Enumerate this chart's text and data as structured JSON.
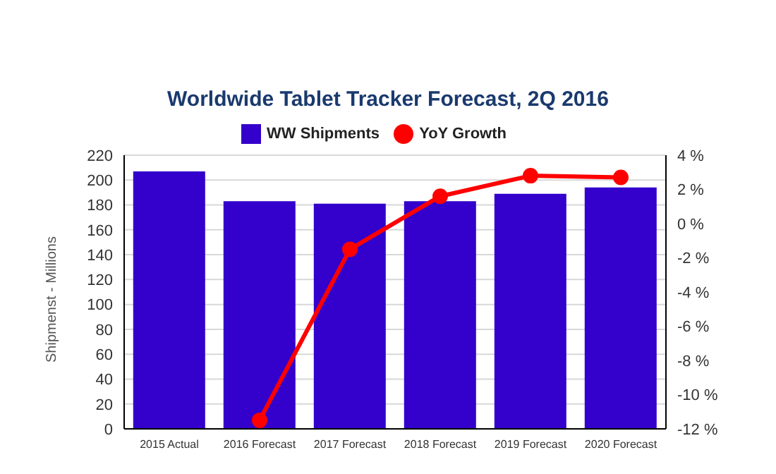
{
  "chart_data": {
    "type": "bar",
    "title": "Worldwide Tablet Tracker Forecast, 2Q 2016",
    "ylabel": "Shipmenst - Millions",
    "categories": [
      "2015 Actual",
      "2016 Forecast",
      "2017 Forecast",
      "2018 Forecast",
      "2019 Forecast",
      "2020 Forecast"
    ],
    "series": [
      {
        "name": "WW Shipments",
        "color": "#3300cc",
        "values": [
          207,
          183,
          181,
          183,
          189,
          194
        ]
      },
      {
        "name": "YoY Growth",
        "type": "line",
        "axis": "y2",
        "color": "#ff0000",
        "values": [
          null,
          -11.5,
          -1.5,
          1.6,
          2.8,
          2.7
        ]
      }
    ],
    "ylim": [
      0,
      220
    ],
    "yticks": [
      0,
      20,
      40,
      60,
      80,
      100,
      120,
      140,
      160,
      180,
      200,
      220
    ],
    "y2lim": [
      -12,
      4
    ],
    "y2ticks": [
      {
        "value": -12,
        "label": "-12 %"
      },
      {
        "value": -10,
        "label": "-10 %"
      },
      {
        "value": -8,
        "label": "-8 %"
      },
      {
        "value": -6,
        "label": "-6 %"
      },
      {
        "value": -4,
        "label": "-4 %"
      },
      {
        "value": -2,
        "label": "-2 %"
      },
      {
        "value": 0,
        "label": "0 %"
      },
      {
        "value": 2,
        "label": "2 %"
      },
      {
        "value": 4,
        "label": "4 %"
      }
    ],
    "grid": "y",
    "legend": "top",
    "marker": "circle"
  }
}
